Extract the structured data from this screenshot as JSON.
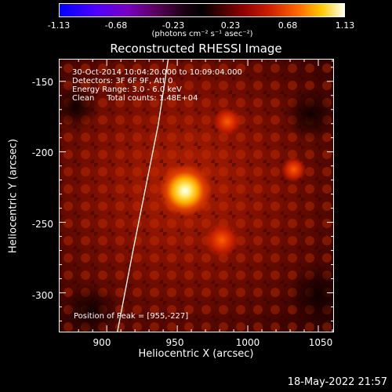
{
  "colorbar": {
    "ticks": [
      "-1.13",
      "-0.68",
      "-0.23",
      "0.23",
      "0.68",
      "1.13"
    ],
    "units": "(photons cm⁻² s⁻¹ asec⁻²)",
    "range": [
      -1.13,
      1.13
    ]
  },
  "title": "Reconstructed RHESSI Image",
  "info": {
    "line1": "30-Oct-2014 10:04:20.000 to 10:09:04.000",
    "line2": "Detectors: 3F 6F 9F, Att 0",
    "line3": "Energy Range: 3.0 - 6.0 keV",
    "line4": "Clean     Total counts: 1.48E+04",
    "peak": "Position of Peak = [955,-227]"
  },
  "axes": {
    "xlabel": "Heliocentric X (arcsec)",
    "ylabel": "Heliocentric Y (arcsec)",
    "xticks": [
      "900",
      "950",
      "1000",
      "1050"
    ],
    "yticks": [
      "-150",
      "-200",
      "-250",
      "-300"
    ],
    "xlim": [
      866,
      1060
    ],
    "ylim": [
      -327,
      -134
    ]
  },
  "peak_position": [
    955,
    -227
  ],
  "timestamp": "18-May-2022 21:57"
}
